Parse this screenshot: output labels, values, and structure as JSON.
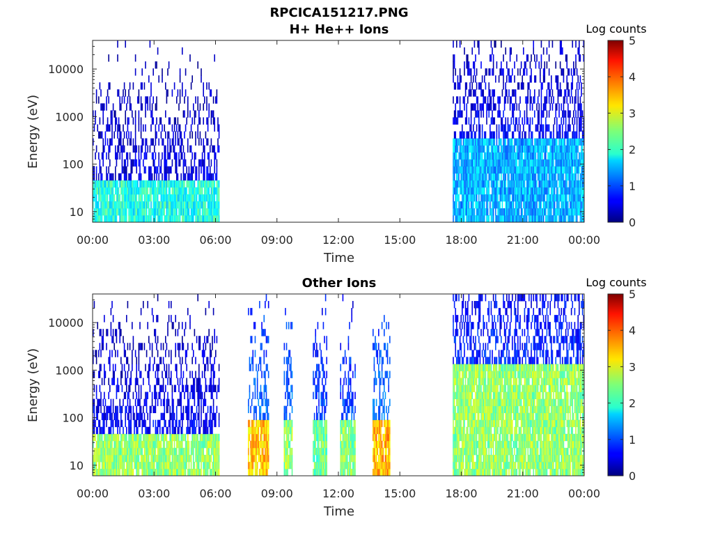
{
  "figure": {
    "title": "RPCICA151217.PNG"
  },
  "chart_data": [
    {
      "type": "heatmap",
      "title": "H+ He++ Ions",
      "xlabel": "Time",
      "ylabel": "Energy (eV)",
      "y_scale": "log",
      "ylim": [
        6,
        40000
      ],
      "x_ticks": [
        "00:00",
        "03:00",
        "06:00",
        "09:00",
        "12:00",
        "15:00",
        "18:00",
        "21:00",
        "00:00"
      ],
      "y_ticks": [
        "10",
        "100",
        "1000",
        "10000"
      ],
      "colorbar": {
        "label": "Log counts",
        "ticks": [
          "0",
          "1",
          "2",
          "3",
          "4",
          "5"
        ],
        "range": [
          0,
          5
        ],
        "colormap": "jet"
      },
      "data_intervals": [
        {
          "start": "00:00",
          "end": "06:10",
          "low_energy_level": 2.0,
          "low_energy_max_eV": 40,
          "high_energy_level": 0.5
        },
        {
          "start": "17:35",
          "end": "23:59",
          "low_energy_level": 1.5,
          "low_energy_max_eV": 300,
          "high_energy_level": 0.6
        }
      ]
    },
    {
      "type": "heatmap",
      "title": "Other Ions",
      "xlabel": "Time",
      "ylabel": "Energy (eV)",
      "y_scale": "log",
      "ylim": [
        6,
        40000
      ],
      "x_ticks": [
        "00:00",
        "03:00",
        "06:00",
        "09:00",
        "12:00",
        "15:00",
        "18:00",
        "21:00",
        "00:00"
      ],
      "y_ticks": [
        "10",
        "100",
        "1000",
        "10000"
      ],
      "colorbar": {
        "label": "Log counts",
        "ticks": [
          "0",
          "1",
          "2",
          "3",
          "4",
          "5"
        ],
        "range": [
          0,
          5
        ],
        "colormap": "jet"
      },
      "data_intervals": [
        {
          "start": "00:00",
          "end": "06:10",
          "low_energy_level": 2.6,
          "low_energy_max_eV": 45,
          "high_energy_level": 0.6
        },
        {
          "start": "07:35",
          "end": "08:35",
          "low_energy_level": 3.4,
          "low_energy_max_eV": 80,
          "high_energy_level": 1.2
        },
        {
          "start": "09:20",
          "end": "09:45",
          "low_energy_level": 2.6,
          "low_energy_max_eV": 80,
          "high_energy_level": 1.2
        },
        {
          "start": "10:45",
          "end": "11:25",
          "low_energy_level": 2.4,
          "low_energy_max_eV": 80,
          "high_energy_level": 1.0
        },
        {
          "start": "12:05",
          "end": "12:50",
          "low_energy_level": 2.5,
          "low_energy_max_eV": 80,
          "high_energy_level": 1.0
        },
        {
          "start": "13:40",
          "end": "14:30",
          "low_energy_level": 3.5,
          "low_energy_max_eV": 80,
          "high_energy_level": 1.2
        },
        {
          "start": "17:35",
          "end": "23:59",
          "low_energy_level": 2.6,
          "low_energy_max_eV": 1500,
          "high_energy_level": 0.8
        }
      ]
    }
  ]
}
